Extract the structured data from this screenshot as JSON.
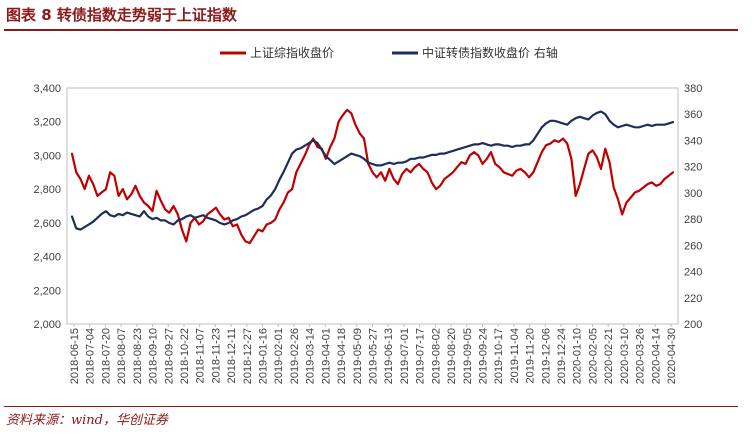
{
  "header": {
    "title": "图表 8   转债指数走势弱于上证指数"
  },
  "footer": {
    "source": "资料来源：wind，华创证券"
  },
  "colors": {
    "accent": "#8B1A1A",
    "series_red": "#C00000",
    "series_navy": "#1F2D5A"
  },
  "chart_data": {
    "type": "line",
    "title": "",
    "legend": [
      "上证综指收盘价",
      "中证转债指数收盘价 右轴"
    ],
    "legend_position": "top-center",
    "left_axis": {
      "ylim": [
        2000,
        3400
      ],
      "ticks": [
        "3,400",
        "3,200",
        "3,000",
        "2,800",
        "2,600",
        "2,400",
        "2,200",
        "2,000"
      ]
    },
    "right_axis": {
      "ylim": [
        200,
        380
      ],
      "ticks": [
        "380",
        "360",
        "340",
        "320",
        "300",
        "280",
        "260",
        "240",
        "220",
        "200"
      ]
    },
    "x_labels": [
      "2018-06-15",
      "2018-07-04",
      "2018-07-20",
      "2018-08-07",
      "2018-08-23",
      "2018-09-10",
      "2018-09-27",
      "2018-10-22",
      "2018-11-07",
      "2018-11-23",
      "2018-12-11",
      "2018-12-27",
      "2019-01-16",
      "2019-02-01",
      "2019-02-26",
      "2019-03-14",
      "2019-04-01",
      "2019-04-18",
      "2019-05-09",
      "2019-05-27",
      "2019-06-13",
      "2019-07-01",
      "2019-07-17",
      "2019-08-02",
      "2019-08-20",
      "2019-09-05",
      "2019-09-24",
      "2019-10-17",
      "2019-11-04",
      "2019-11-20",
      "2019-12-06",
      "2019-12-24",
      "2020-01-10",
      "2020-02-05",
      "2020-02-21",
      "2020-03-10",
      "2020-03-26",
      "2020-04-14",
      "2020-04-30"
    ],
    "series": [
      {
        "name": "上证综指收盘价",
        "axis": "left",
        "values": [
          3010,
          2900,
          2860,
          2800,
          2880,
          2830,
          2760,
          2780,
          2800,
          2900,
          2880,
          2760,
          2800,
          2740,
          2770,
          2820,
          2760,
          2720,
          2700,
          2670,
          2790,
          2730,
          2680,
          2660,
          2700,
          2650,
          2560,
          2490,
          2600,
          2630,
          2590,
          2610,
          2650,
          2670,
          2690,
          2650,
          2620,
          2630,
          2580,
          2590,
          2530,
          2490,
          2480,
          2520,
          2560,
          2550,
          2590,
          2600,
          2620,
          2680,
          2720,
          2780,
          2800,
          2900,
          2950,
          3000,
          3060,
          3100,
          3050,
          3040,
          2980,
          3050,
          3100,
          3200,
          3240,
          3270,
          3250,
          3180,
          3130,
          3100,
          2950,
          2900,
          2870,
          2900,
          2850,
          2920,
          2860,
          2830,
          2890,
          2920,
          2900,
          2930,
          2950,
          2920,
          2900,
          2840,
          2800,
          2820,
          2860,
          2880,
          2900,
          2930,
          2960,
          2950,
          3000,
          3020,
          3000,
          2950,
          2980,
          3020,
          2950,
          2930,
          2900,
          2890,
          2880,
          2910,
          2920,
          2900,
          2870,
          2900,
          2960,
          3020,
          3060,
          3070,
          3090,
          3080,
          3100,
          3070,
          2980,
          2760,
          2830,
          2920,
          3010,
          3030,
          2990,
          2920,
          3040,
          2960,
          2810,
          2740,
          2650,
          2720,
          2750,
          2780,
          2790,
          2810,
          2830,
          2840,
          2820,
          2830,
          2860,
          2880,
          2900
        ]
      },
      {
        "name": "中证转债指数收盘价 右轴",
        "axis": "right",
        "values": [
          282,
          273,
          272,
          274,
          276,
          278,
          281,
          284,
          286,
          283,
          282,
          284,
          283,
          285,
          284,
          283,
          282,
          286,
          282,
          280,
          281,
          279,
          279,
          277,
          276,
          279,
          280,
          282,
          283,
          281,
          282,
          283,
          281,
          280,
          279,
          277,
          276,
          277,
          279,
          280,
          282,
          283,
          285,
          287,
          288,
          290,
          295,
          298,
          303,
          310,
          316,
          323,
          330,
          333,
          334,
          336,
          338,
          340,
          338,
          333,
          328,
          325,
          322,
          324,
          326,
          328,
          330,
          329,
          328,
          326,
          323,
          322,
          321,
          321,
          322,
          323,
          322,
          323,
          323,
          324,
          326,
          326,
          327,
          327,
          328,
          329,
          329,
          330,
          330,
          331,
          332,
          333,
          334,
          335,
          336,
          337,
          337,
          338,
          337,
          336,
          337,
          337,
          336,
          336,
          335,
          336,
          336,
          337,
          337,
          340,
          345,
          350,
          353,
          355,
          355,
          354,
          353,
          352,
          355,
          357,
          358,
          357,
          356,
          359,
          361,
          362,
          360,
          355,
          352,
          350,
          351,
          352,
          351,
          350,
          350,
          351,
          352,
          351,
          352,
          352,
          352,
          353,
          354
        ]
      }
    ]
  }
}
